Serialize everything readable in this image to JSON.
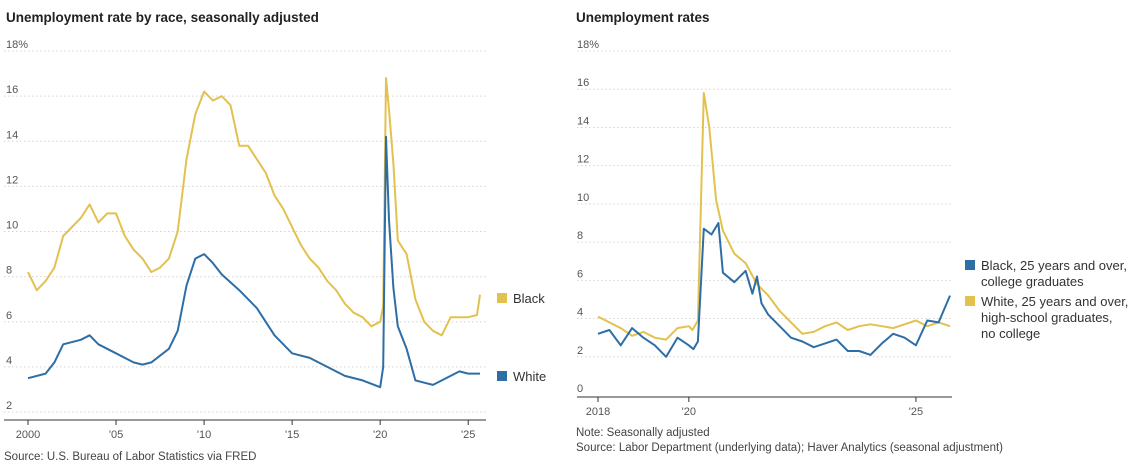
{
  "left": {
    "title": "Unemployment rate by race, seasonally adjusted",
    "source": "Source: U.S. Bureau of Labor Statistics via FRED"
  },
  "right": {
    "title": "Unemployment rates",
    "note": "Note: Seasonally adjusted",
    "source": "Source: Labor Department (underlying data); Haver Analytics (seasonal adjustment)"
  },
  "colors": {
    "yellow": "#e3c14e",
    "blue": "#2e6ea6"
  },
  "chart_data": [
    {
      "type": "line",
      "title": "Unemployment rate by race, seasonally adjusted",
      "ylim": [
        2,
        18
      ],
      "xlim": [
        2000,
        2025.67
      ],
      "yticks": [
        2,
        4,
        6,
        8,
        10,
        12,
        14,
        16,
        18
      ],
      "ytick_labels": [
        "2",
        "4",
        "6",
        "8",
        "10",
        "12",
        "14",
        "16",
        "18%"
      ],
      "xticks": [
        2000,
        2005,
        2010,
        2015,
        2020,
        2025
      ],
      "xtick_labels": [
        "2000",
        "'05",
        "'10",
        "'15",
        "'20",
        "'25"
      ],
      "series": [
        {
          "name": "Black",
          "label": "Black",
          "color": "#e3c14e",
          "points": [
            [
              2000,
              8.2
            ],
            [
              2000.5,
              7.4
            ],
            [
              2001,
              7.8
            ],
            [
              2001.5,
              8.4
            ],
            [
              2002,
              9.8
            ],
            [
              2002.5,
              10.2
            ],
            [
              2003,
              10.6
            ],
            [
              2003.5,
              11.2
            ],
            [
              2004,
              10.4
            ],
            [
              2004.5,
              10.8
            ],
            [
              2005,
              10.8
            ],
            [
              2005.5,
              9.8
            ],
            [
              2006,
              9.2
            ],
            [
              2006.5,
              8.8
            ],
            [
              2007,
              8.2
            ],
            [
              2007.5,
              8.4
            ],
            [
              2008,
              8.8
            ],
            [
              2008.5,
              10.0
            ],
            [
              2009,
              13.2
            ],
            [
              2009.5,
              15.2
            ],
            [
              2010,
              16.2
            ],
            [
              2010.5,
              15.8
            ],
            [
              2011,
              16.0
            ],
            [
              2011.5,
              15.6
            ],
            [
              2012,
              13.8
            ],
            [
              2012.5,
              13.8
            ],
            [
              2013,
              13.2
            ],
            [
              2013.5,
              12.6
            ],
            [
              2014,
              11.6
            ],
            [
              2014.5,
              11.0
            ],
            [
              2015,
              10.2
            ],
            [
              2015.5,
              9.4
            ],
            [
              2016,
              8.8
            ],
            [
              2016.5,
              8.4
            ],
            [
              2017,
              7.8
            ],
            [
              2017.5,
              7.4
            ],
            [
              2018,
              6.8
            ],
            [
              2018.5,
              6.4
            ],
            [
              2019,
              6.2
            ],
            [
              2019.5,
              5.8
            ],
            [
              2020,
              6.0
            ],
            [
              2020.17,
              6.7
            ],
            [
              2020.33,
              16.8
            ],
            [
              2020.5,
              15.4
            ],
            [
              2020.75,
              13.0
            ],
            [
              2021,
              9.6
            ],
            [
              2021.5,
              9.0
            ],
            [
              2022,
              7.0
            ],
            [
              2022.5,
              6.0
            ],
            [
              2023,
              5.6
            ],
            [
              2023.5,
              5.4
            ],
            [
              2024,
              6.2
            ],
            [
              2024.5,
              6.2
            ],
            [
              2025,
              6.2
            ],
            [
              2025.5,
              6.3
            ],
            [
              2025.67,
              7.2
            ]
          ]
        },
        {
          "name": "White",
          "label": "White",
          "color": "#2e6ea6",
          "points": [
            [
              2000,
              3.5
            ],
            [
              2001,
              3.7
            ],
            [
              2001.5,
              4.2
            ],
            [
              2002,
              5.0
            ],
            [
              2003,
              5.2
            ],
            [
              2003.5,
              5.4
            ],
            [
              2004,
              5.0
            ],
            [
              2005,
              4.6
            ],
            [
              2006,
              4.2
            ],
            [
              2006.5,
              4.1
            ],
            [
              2007,
              4.2
            ],
            [
              2008,
              4.8
            ],
            [
              2008.5,
              5.6
            ],
            [
              2009,
              7.6
            ],
            [
              2009.5,
              8.8
            ],
            [
              2010,
              9.0
            ],
            [
              2010.5,
              8.6
            ],
            [
              2011,
              8.1
            ],
            [
              2012,
              7.4
            ],
            [
              2012.5,
              7.0
            ],
            [
              2013,
              6.6
            ],
            [
              2014,
              5.4
            ],
            [
              2015,
              4.6
            ],
            [
              2016,
              4.4
            ],
            [
              2017,
              4.0
            ],
            [
              2018,
              3.6
            ],
            [
              2019,
              3.4
            ],
            [
              2020,
              3.1
            ],
            [
              2020.17,
              4.0
            ],
            [
              2020.33,
              14.2
            ],
            [
              2020.5,
              10.5
            ],
            [
              2020.75,
              7.5
            ],
            [
              2021,
              5.8
            ],
            [
              2021.5,
              4.8
            ],
            [
              2022,
              3.4
            ],
            [
              2022.5,
              3.3
            ],
            [
              2023,
              3.2
            ],
            [
              2023.5,
              3.4
            ],
            [
              2024,
              3.6
            ],
            [
              2024.5,
              3.8
            ],
            [
              2025,
              3.7
            ],
            [
              2025.67,
              3.7
            ]
          ]
        }
      ]
    },
    {
      "type": "line",
      "title": "Unemployment rates",
      "ylim": [
        0,
        18
      ],
      "xlim": [
        2018,
        2025.75
      ],
      "yticks": [
        0,
        2,
        4,
        6,
        8,
        10,
        12,
        14,
        16,
        18
      ],
      "ytick_labels": [
        "0",
        "2",
        "4",
        "6",
        "8",
        "10",
        "12",
        "14",
        "16",
        "18%"
      ],
      "xticks": [
        2018,
        2020,
        2025
      ],
      "xtick_labels": [
        "2018",
        "'20",
        "'25"
      ],
      "series": [
        {
          "name": "White, 25 years and over, high-school graduates, no college",
          "label_lines": [
            "White, 25 years and over,",
            "high-school graduates,",
            "no college"
          ],
          "color": "#e3c14e",
          "points": [
            [
              2018,
              4.1
            ],
            [
              2018.25,
              3.8
            ],
            [
              2018.5,
              3.5
            ],
            [
              2018.75,
              3.1
            ],
            [
              2019,
              3.3
            ],
            [
              2019.25,
              3.0
            ],
            [
              2019.5,
              2.9
            ],
            [
              2019.75,
              3.5
            ],
            [
              2020,
              3.6
            ],
            [
              2020.08,
              3.4
            ],
            [
              2020.2,
              3.9
            ],
            [
              2020.33,
              15.8
            ],
            [
              2020.45,
              14.0
            ],
            [
              2020.6,
              10.2
            ],
            [
              2020.75,
              8.6
            ],
            [
              2021,
              7.4
            ],
            [
              2021.25,
              6.9
            ],
            [
              2021.5,
              5.8
            ],
            [
              2021.75,
              5.2
            ],
            [
              2022,
              4.4
            ],
            [
              2022.25,
              3.8
            ],
            [
              2022.5,
              3.2
            ],
            [
              2022.75,
              3.3
            ],
            [
              2023,
              3.6
            ],
            [
              2023.25,
              3.8
            ],
            [
              2023.5,
              3.4
            ],
            [
              2023.75,
              3.6
            ],
            [
              2024,
              3.7
            ],
            [
              2024.25,
              3.6
            ],
            [
              2024.5,
              3.5
            ],
            [
              2024.75,
              3.7
            ],
            [
              2025,
              3.9
            ],
            [
              2025.25,
              3.6
            ],
            [
              2025.5,
              3.8
            ],
            [
              2025.75,
              3.6
            ]
          ]
        },
        {
          "name": "Black, 25 years and over, college graduates",
          "label_lines": [
            "Black, 25 years and over,",
            "college graduates"
          ],
          "color": "#2e6ea6",
          "points": [
            [
              2018,
              3.2
            ],
            [
              2018.25,
              3.4
            ],
            [
              2018.5,
              2.6
            ],
            [
              2018.75,
              3.5
            ],
            [
              2019,
              3.0
            ],
            [
              2019.25,
              2.6
            ],
            [
              2019.5,
              2.0
            ],
            [
              2019.75,
              3.0
            ],
            [
              2020,
              2.6
            ],
            [
              2020.1,
              2.4
            ],
            [
              2020.2,
              2.8
            ],
            [
              2020.33,
              8.7
            ],
            [
              2020.5,
              8.4
            ],
            [
              2020.65,
              9.0
            ],
            [
              2020.75,
              6.4
            ],
            [
              2021,
              5.9
            ],
            [
              2021.25,
              6.5
            ],
            [
              2021.4,
              5.3
            ],
            [
              2021.5,
              6.2
            ],
            [
              2021.6,
              4.8
            ],
            [
              2021.75,
              4.2
            ],
            [
              2022,
              3.6
            ],
            [
              2022.25,
              3.0
            ],
            [
              2022.5,
              2.8
            ],
            [
              2022.75,
              2.5
            ],
            [
              2023,
              2.7
            ],
            [
              2023.25,
              2.9
            ],
            [
              2023.5,
              2.3
            ],
            [
              2023.75,
              2.3
            ],
            [
              2024,
              2.1
            ],
            [
              2024.25,
              2.7
            ],
            [
              2024.5,
              3.2
            ],
            [
              2024.75,
              3.0
            ],
            [
              2025,
              2.6
            ],
            [
              2025.25,
              3.9
            ],
            [
              2025.5,
              3.8
            ],
            [
              2025.75,
              5.2
            ]
          ]
        }
      ]
    }
  ]
}
